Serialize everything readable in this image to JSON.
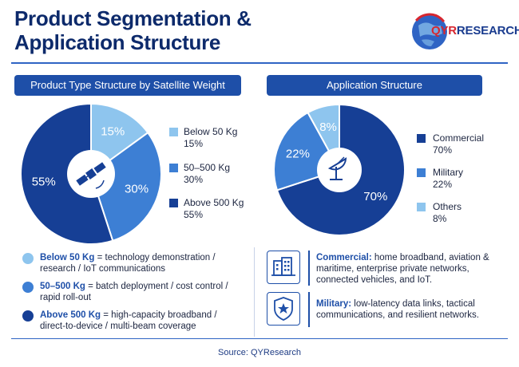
{
  "header": {
    "title_line1": "Product Segmentation &",
    "title_line2": "Application Structure",
    "logo_q": "QYR",
    "logo_rest": "RESEARCH"
  },
  "chart_data": [
    {
      "type": "pie",
      "title": "Product Type Structure by Satellite Weight",
      "center_icon": "satellite-icon",
      "slices": [
        {
          "label": "Below 50 Kg",
          "value": 15,
          "display": "15%",
          "legend_value": "15%",
          "color": "#8ec5ee"
        },
        {
          "label": "50–500 Kg",
          "value": 30,
          "display": "30%",
          "legend_value": "30%",
          "color": "#3d7fd4"
        },
        {
          "label": "Above 500 Kg",
          "value": 55,
          "display": "55%",
          "legend_value": "55%",
          "color": "#163f95"
        }
      ],
      "legend_position": "right"
    },
    {
      "type": "pie",
      "title": "Application Structure",
      "center_icon": "satellite-dish-icon",
      "slices": [
        {
          "label": "Commercial",
          "value": 70,
          "display": "70%",
          "legend_value": "70%",
          "color": "#163f95"
        },
        {
          "label": "Military",
          "value": 22,
          "display": "22%",
          "legend_value": "22%",
          "color": "#3d7fd4"
        },
        {
          "label": "Others",
          "value": 8,
          "display": "8%",
          "legend_value": "8%",
          "color": "#8ec5ee"
        }
      ],
      "legend_position": "right"
    }
  ],
  "notes": [
    {
      "name": "Below 50 Kg",
      "text": " = technology demonstration / research / IoT communications",
      "color": "#8ec5ee"
    },
    {
      "name": "50–500 Kg",
      "text": " = batch deployment / cost control / rapid roll-out",
      "color": "#3d7fd4"
    },
    {
      "name": "Above 500 Kg",
      "text": " = high-capacity broadband / direct-to-device / multi-beam coverage",
      "color": "#163f95"
    }
  ],
  "applications": [
    {
      "name": "Commercial:",
      "text": " home broadband, aviation & maritime, enterprise private networks, connected vehicles, and IoT.",
      "icon": "buildings-icon"
    },
    {
      "name": "Military:",
      "text": " low-latency data links, tactical communications, and resilient networks.",
      "icon": "shield-star-icon"
    }
  ],
  "footer": {
    "source": "Source: QYResearch"
  }
}
